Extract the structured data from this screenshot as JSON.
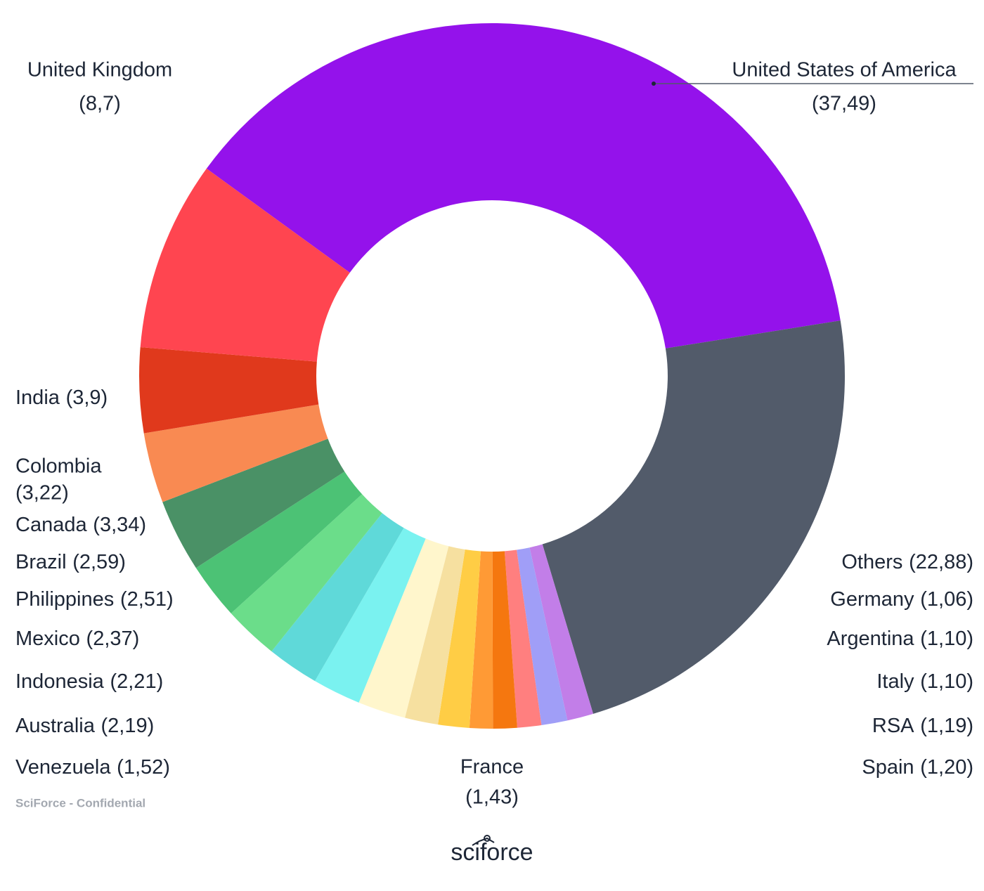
{
  "chart_data": {
    "type": "donut",
    "categories": [
      "United States of America",
      "Others",
      "Spain",
      "RSA",
      "Italy",
      "Argentina",
      "Germany",
      "France",
      "Venezuela",
      "Australia",
      "Indonesia",
      "Mexico",
      "Philippines",
      "Brazil",
      "Canada",
      "Colombia",
      "India",
      "United Kingdom"
    ],
    "values": [
      37.49,
      22.88,
      1.2,
      1.19,
      1.1,
      1.1,
      1.06,
      1.43,
      1.52,
      2.19,
      2.21,
      2.37,
      2.51,
      2.59,
      3.34,
      3.22,
      3.9,
      8.7
    ],
    "value_labels": [
      "(37,49)",
      "(22,88)",
      "(1,20)",
      "(1,19)",
      "(1,10)",
      "(1,10)",
      "(1,06)",
      "(1,43)",
      "(1,52)",
      "(2,19)",
      "(2,21)",
      "(2,37)",
      "(2,51)",
      "(2,59)",
      "(3,34)",
      "(3,22)",
      "(3,9)",
      "(8,7)"
    ],
    "colors": [
      "#9412eb",
      "#525b6a",
      "#c27ee8",
      "#a09ef7",
      "#ff7f7f",
      "#f5770f",
      "#ff9a35",
      "#ffcd45",
      "#f6e0a0",
      "#fff6cc",
      "#7af2f0",
      "#5fd9d9",
      "#6bdd8a",
      "#4cc275",
      "#4a9166",
      "#f98a52",
      "#e0391c",
      "#ff4550"
    ],
    "footnote": "SciForce - Confidential",
    "brand": "sciforce"
  }
}
